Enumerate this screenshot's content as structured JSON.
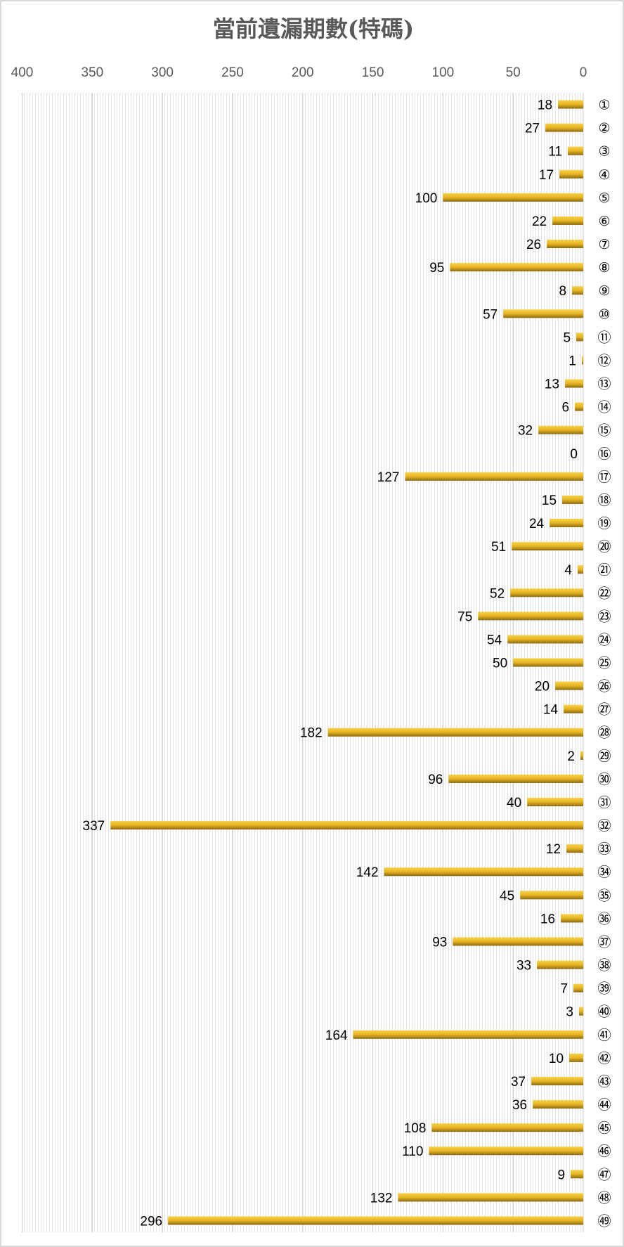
{
  "chart_data": {
    "type": "bar",
    "orientation": "horizontal",
    "x_direction": "reversed",
    "title": "當前遺漏期數(特碼)",
    "xlim": [
      0,
      400
    ],
    "xticks": [
      400,
      350,
      300,
      250,
      200,
      150,
      100,
      50,
      0
    ],
    "grid": true,
    "bar_color": "#e6b422",
    "categories": [
      "①",
      "②",
      "③",
      "④",
      "⑤",
      "⑥",
      "⑦",
      "⑧",
      "⑨",
      "⑩",
      "⑪",
      "⑫",
      "⑬",
      "⑭",
      "⑮",
      "⑯",
      "⑰",
      "⑱",
      "⑲",
      "⑳",
      "㉑",
      "㉒",
      "㉓",
      "㉔",
      "㉕",
      "㉖",
      "㉗",
      "㉘",
      "㉙",
      "㉚",
      "㉛",
      "㉜",
      "㉝",
      "㉞",
      "㉟",
      "㊱",
      "㊲",
      "㊳",
      "㊴",
      "㊵",
      "㊶",
      "㊷",
      "㊸",
      "㊹",
      "㊺",
      "㊻",
      "㊼",
      "㊽",
      "㊾"
    ],
    "values": [
      18,
      27,
      11,
      17,
      100,
      22,
      26,
      95,
      8,
      57,
      5,
      1,
      13,
      6,
      32,
      0,
      127,
      15,
      24,
      51,
      4,
      52,
      75,
      54,
      50,
      20,
      14,
      182,
      2,
      96,
      40,
      337,
      12,
      142,
      45,
      16,
      93,
      33,
      7,
      3,
      164,
      10,
      37,
      36,
      108,
      110,
      9,
      132,
      296
    ]
  }
}
